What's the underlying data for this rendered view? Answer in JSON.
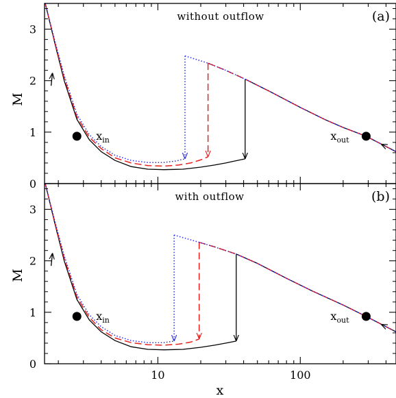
{
  "chart_data": [
    {
      "type": "line",
      "panel_letter": "(a)",
      "title": "without outflow",
      "xlabel": "",
      "ylabel": "M",
      "xscale": "log",
      "xlim": [
        1.6,
        470
      ],
      "ylim": [
        0,
        3.5
      ],
      "x_ticks": [
        10,
        100
      ],
      "y_ticks": [
        0,
        1,
        2,
        3
      ],
      "x_tick_labels": [
        "",
        ""
      ],
      "y_tick_labels": [
        "0",
        "1",
        "2",
        "3"
      ],
      "grid": false,
      "critical_points": [
        {
          "label": "x",
          "sub": "in",
          "x": 2.7,
          "y": 0.92
        },
        {
          "label": "x",
          "sub": "out",
          "x": 290,
          "y": 0.92
        }
      ],
      "series": [
        {
          "style": "solid",
          "color": "#000000",
          "subsonic": {
            "x": [
              1.62,
              1.9,
              2.2,
              2.7,
              3.3,
              4.0,
              5.0,
              6.5,
              8.5,
              11,
              15,
              20,
              25,
              30,
              35,
              41
            ],
            "y": [
              3.5,
              2.7,
              2.0,
              1.25,
              0.85,
              0.62,
              0.45,
              0.33,
              0.28,
              0.27,
              0.28,
              0.32,
              0.36,
              0.4,
              0.44,
              0.48
            ]
          },
          "shock": {
            "x": 41,
            "y_low": 0.48,
            "y_high": 2.03
          },
          "supersonic": {
            "x": [
              41,
              60,
              100,
              150,
              200,
              290,
              470
            ],
            "y": [
              2.03,
              1.8,
              1.48,
              1.24,
              1.09,
              0.92,
              0.62
            ]
          }
        },
        {
          "style": "dashed",
          "color": "#e8201e",
          "subsonic": {
            "x": [
              1.62,
              1.9,
              2.2,
              2.7,
              3.3,
              4.0,
              5.0,
              6.5,
              8.5,
              11,
              14,
              17,
              20,
              22.5
            ],
            "y": [
              3.5,
              2.72,
              2.05,
              1.3,
              0.9,
              0.68,
              0.5,
              0.4,
              0.35,
              0.34,
              0.36,
              0.4,
              0.46,
              0.52
            ]
          },
          "shock": {
            "x": 22.5,
            "y_low": 0.52,
            "y_high": 2.34
          },
          "supersonic": {
            "x": [
              22.5,
              30,
              41,
              60,
              100,
              150,
              200,
              290,
              470
            ],
            "y": [
              2.34,
              2.2,
              2.03,
              1.8,
              1.48,
              1.24,
              1.09,
              0.92,
              0.62
            ]
          }
        },
        {
          "style": "dotted",
          "color": "#2a2ae0",
          "subsonic": {
            "x": [
              1.62,
              1.9,
              2.2,
              2.7,
              3.3,
              4.0,
              5.0,
              6.5,
              8.5,
              11,
              13.5,
              15.5
            ],
            "y": [
              3.5,
              2.75,
              2.1,
              1.35,
              0.95,
              0.72,
              0.55,
              0.45,
              0.41,
              0.41,
              0.44,
              0.48
            ]
          },
          "shock": {
            "x": 15.5,
            "y_low": 0.48,
            "y_high": 2.48
          },
          "supersonic": {
            "x": [
              15.5,
              22.5,
              30,
              41,
              60,
              100,
              150,
              200,
              290,
              470
            ],
            "y": [
              2.48,
              2.34,
              2.2,
              2.03,
              1.8,
              1.48,
              1.24,
              1.09,
              0.92,
              0.62
            ]
          }
        }
      ]
    },
    {
      "type": "line",
      "panel_letter": "(b)",
      "title": "with outflow",
      "xlabel": "x",
      "ylabel": "M",
      "xscale": "log",
      "xlim": [
        1.6,
        470
      ],
      "ylim": [
        0,
        3.5
      ],
      "x_ticks": [
        10,
        100
      ],
      "y_ticks": [
        0,
        1,
        2,
        3
      ],
      "x_tick_labels": [
        "10",
        "100"
      ],
      "y_tick_labels": [
        "0",
        "1",
        "2",
        "3"
      ],
      "grid": false,
      "critical_points": [
        {
          "label": "x",
          "sub": "in",
          "x": 2.7,
          "y": 0.92
        },
        {
          "label": "x",
          "sub": "out",
          "x": 290,
          "y": 0.92
        }
      ],
      "series": [
        {
          "style": "solid",
          "color": "#000000",
          "subsonic": {
            "x": [
              1.62,
              1.9,
              2.2,
              2.7,
              3.3,
              4.0,
              5.0,
              6.5,
              8.5,
              11,
              15,
              20,
              25,
              30,
              35.5
            ],
            "y": [
              3.5,
              2.7,
              2.0,
              1.25,
              0.85,
              0.62,
              0.45,
              0.33,
              0.28,
              0.27,
              0.28,
              0.32,
              0.36,
              0.4,
              0.44
            ]
          },
          "shock": {
            "x": 35.5,
            "y_low": 0.44,
            "y_high": 2.13
          },
          "supersonic": {
            "x": [
              35.5,
              50,
              80,
              120,
              200,
              290,
              470
            ],
            "y": [
              2.13,
              1.95,
              1.66,
              1.42,
              1.14,
              0.92,
              0.62
            ]
          }
        },
        {
          "style": "dashed",
          "color": "#e8201e",
          "subsonic": {
            "x": [
              1.62,
              1.9,
              2.2,
              2.7,
              3.3,
              4.0,
              5.0,
              6.5,
              8.5,
              11,
              14,
              17,
              19.5
            ],
            "y": [
              3.5,
              2.72,
              2.05,
              1.3,
              0.9,
              0.66,
              0.5,
              0.41,
              0.37,
              0.36,
              0.38,
              0.42,
              0.48
            ]
          },
          "shock": {
            "x": 19.5,
            "y_low": 0.48,
            "y_high": 2.36
          },
          "supersonic": {
            "x": [
              19.5,
              25,
              35.5,
              50,
              80,
              120,
              200,
              290,
              470
            ],
            "y": [
              2.36,
              2.27,
              2.13,
              1.95,
              1.66,
              1.42,
              1.14,
              0.92,
              0.62
            ]
          }
        },
        {
          "style": "dotted",
          "color": "#2a2ae0",
          "subsonic": {
            "x": [
              1.62,
              1.9,
              2.2,
              2.7,
              3.3,
              4.0,
              5.0,
              6.5,
              8.5,
              11,
              13
            ],
            "y": [
              3.5,
              2.75,
              2.1,
              1.35,
              0.95,
              0.72,
              0.55,
              0.45,
              0.41,
              0.41,
              0.44
            ]
          },
          "shock": {
            "x": 13,
            "y_low": 0.44,
            "y_high": 2.5
          },
          "supersonic": {
            "x": [
              13,
              19.5,
              25,
              35.5,
              50,
              80,
              120,
              200,
              290,
              470
            ],
            "y": [
              2.5,
              2.36,
              2.27,
              2.13,
              1.95,
              1.66,
              1.42,
              1.14,
              0.92,
              0.62
            ]
          }
        }
      ]
    }
  ]
}
